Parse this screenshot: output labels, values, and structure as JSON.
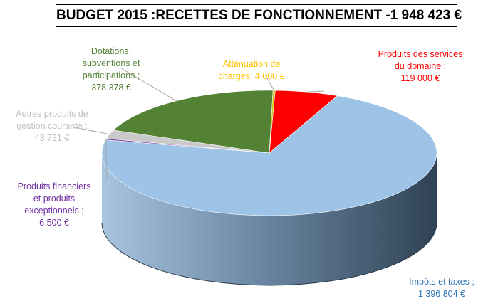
{
  "chart_data": {
    "type": "pie",
    "style": "3d",
    "title": "BUDGET 2015 :RECETTES DE FONCTIONNEMENT -1 948 423 €",
    "slices": [
      {
        "name": "Produits des services du domaine",
        "value": 119000,
        "color": "#ff0000",
        "label_lines": [
          "Produits des services",
          "du domaine ;",
          "119 000 €"
        ]
      },
      {
        "name": "Impôts et taxes",
        "value": 1396804,
        "color": "#9dc3e6",
        "label_lines": [
          "Impôts et taxes ;",
          "1 396 804 €"
        ]
      },
      {
        "name": "Produits financiers et produits exceptionnels",
        "value": 6500,
        "color": "#7030a0",
        "label_lines": [
          "Produits financiers",
          "et produits",
          "exceptionnels ;",
          "6 500 €"
        ]
      },
      {
        "name": "Autres produits de gestion courante",
        "value": 43731,
        "color": "#c9c9c9",
        "label_lines": [
          "Autres produits de",
          "gestion courante ;",
          "43 731 €"
        ]
      },
      {
        "name": "Dotations, subventions et participations",
        "value": 378378,
        "color": "#548235",
        "label_lines": [
          "Dotations,",
          "subventions et",
          "participations ;",
          "378 378 €"
        ]
      },
      {
        "name": "Atténuation de charges",
        "value": 4000,
        "color": "#c8c800",
        "label_lines": [
          "Atténuation de",
          "charges; 4 000 €"
        ]
      }
    ],
    "label_colors": [
      "#ff0000",
      "#2e75b6",
      "#7030a0",
      "#bfbfbf",
      "#548235",
      "#ffc000"
    ]
  }
}
